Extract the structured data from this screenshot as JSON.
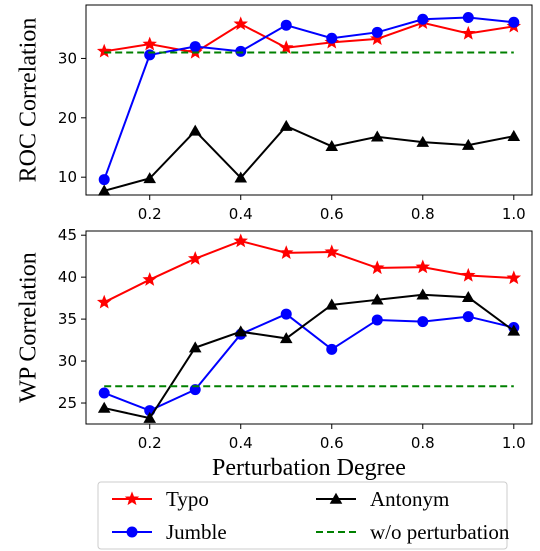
{
  "chart_data": [
    {
      "type": "line",
      "x": [
        0.1,
        0.2,
        0.3,
        0.4,
        0.5,
        0.6,
        0.7,
        0.8,
        0.9,
        1.0
      ],
      "ylabel": "ROC Correlation",
      "xlabel": "",
      "xlim": [
        0.06,
        1.04
      ],
      "ylim": [
        7,
        39
      ],
      "xticks": [
        "0.2",
        "0.4",
        "0.6",
        "0.8",
        "1.0"
      ],
      "yticks": [
        "10",
        "20",
        "30"
      ],
      "series": [
        {
          "name": "Typo",
          "color": "#ff0000",
          "marker": "star",
          "values": [
            31.2,
            32.4,
            31.0,
            35.8,
            31.8,
            32.7,
            33.3,
            36.0,
            34.2,
            35.4
          ]
        },
        {
          "name": "Jumble",
          "color": "#0000ff",
          "marker": "circle",
          "values": [
            9.6,
            30.6,
            32.0,
            31.2,
            35.6,
            33.4,
            34.4,
            36.6,
            36.9,
            36.1
          ]
        },
        {
          "name": "Antonym",
          "color": "#000000",
          "marker": "triangle",
          "values": [
            7.7,
            9.8,
            17.8,
            9.9,
            18.6,
            15.2,
            16.8,
            15.9,
            15.4,
            16.9
          ]
        },
        {
          "name": "w/o perturbation",
          "color": "#008000",
          "marker": "none",
          "dashed": true,
          "values": [
            31.0,
            31.0,
            31.0,
            31.0,
            31.0,
            31.0,
            31.0,
            31.0,
            31.0,
            31.0
          ]
        }
      ]
    },
    {
      "type": "line",
      "x": [
        0.1,
        0.2,
        0.3,
        0.4,
        0.5,
        0.6,
        0.7,
        0.8,
        0.9,
        1.0
      ],
      "ylabel": "WP Correlation",
      "xlabel": "Perturbation Degree",
      "xlim": [
        0.06,
        1.04
      ],
      "ylim": [
        22.5,
        45.5
      ],
      "xticks": [
        "0.2",
        "0.4",
        "0.6",
        "0.8",
        "1.0"
      ],
      "yticks": [
        "25",
        "30",
        "35",
        "40",
        "45"
      ],
      "series": [
        {
          "name": "Typo",
          "color": "#ff0000",
          "marker": "star",
          "values": [
            37.0,
            39.7,
            42.2,
            44.3,
            42.9,
            43.0,
            41.1,
            41.2,
            40.2,
            39.9
          ]
        },
        {
          "name": "Jumble",
          "color": "#0000ff",
          "marker": "circle",
          "values": [
            26.2,
            24.1,
            26.6,
            33.2,
            35.6,
            31.4,
            34.9,
            34.7,
            35.3,
            34.0
          ]
        },
        {
          "name": "Antonym",
          "color": "#000000",
          "marker": "triangle",
          "values": [
            24.4,
            23.2,
            31.6,
            33.5,
            32.7,
            36.7,
            37.3,
            37.9,
            37.6,
            33.6
          ]
        },
        {
          "name": "w/o perturbation",
          "color": "#008000",
          "marker": "none",
          "dashed": true,
          "values": [
            27.0,
            27.0,
            27.0,
            27.0,
            27.0,
            27.0,
            27.0,
            27.0,
            27.0,
            27.0
          ]
        }
      ]
    }
  ],
  "legend": {
    "placement": "bottom",
    "items": [
      {
        "label": "Typo",
        "color": "#ff0000",
        "marker": "star"
      },
      {
        "label": "Antonym",
        "color": "#000000",
        "marker": "triangle"
      },
      {
        "label": "Jumble",
        "color": "#0000ff",
        "marker": "circle"
      },
      {
        "label": "w/o perturbation",
        "color": "#008000",
        "marker": "none",
        "dashed": true
      }
    ]
  }
}
